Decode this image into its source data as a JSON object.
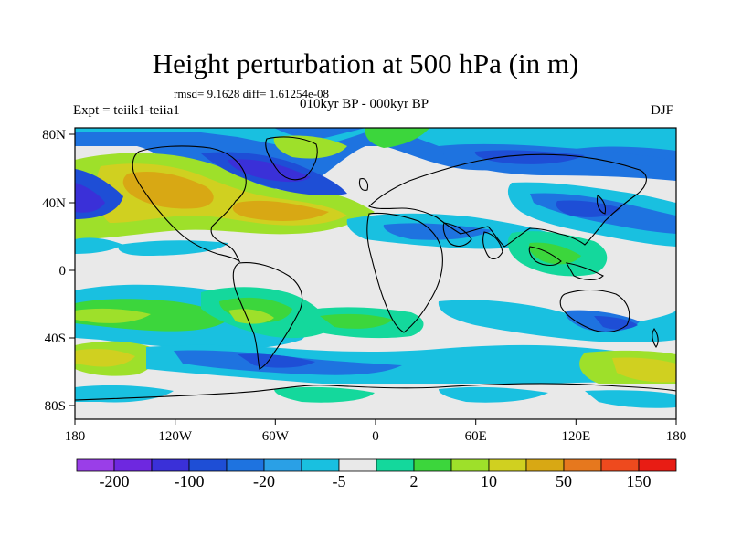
{
  "title": "Height perturbation at 500 hPa (in m)",
  "stats_line": "rmsd= 9.1628 diff= 1.61254e-08",
  "left_label": "Expt = teiik1-teiia1",
  "center_label": "010kyr BP - 000kyr BP",
  "right_label": "DJF",
  "axes": {
    "x_ticks": [
      "180",
      "120W",
      "60W",
      "0",
      "60E",
      "120E",
      "180"
    ],
    "y_ticks": [
      "80N",
      "40N",
      "0",
      "40S",
      "80S"
    ]
  },
  "colorbar": {
    "labels": [
      "-200",
      "-100",
      "-20",
      "-5",
      "2",
      "10",
      "50",
      "150"
    ],
    "colors": [
      "#9a3ee8",
      "#6e28e0",
      "#3a30d8",
      "#1e4ed6",
      "#1e73e0",
      "#2aa0e6",
      "#19c0e0",
      "#e9e9e9",
      "#14d89c",
      "#3cd63c",
      "#9ee02a",
      "#d0d020",
      "#d8a814",
      "#e6781e",
      "#ee4a1e",
      "#e81c14"
    ]
  },
  "chart_data": {
    "type": "heatmap",
    "title": "Height perturbation at 500 hPa (in m)",
    "x_range": [
      -180,
      180
    ],
    "y_range": [
      -90,
      90
    ],
    "levels": [
      -200,
      -100,
      -20,
      -5,
      2,
      10,
      50,
      150
    ]
  }
}
